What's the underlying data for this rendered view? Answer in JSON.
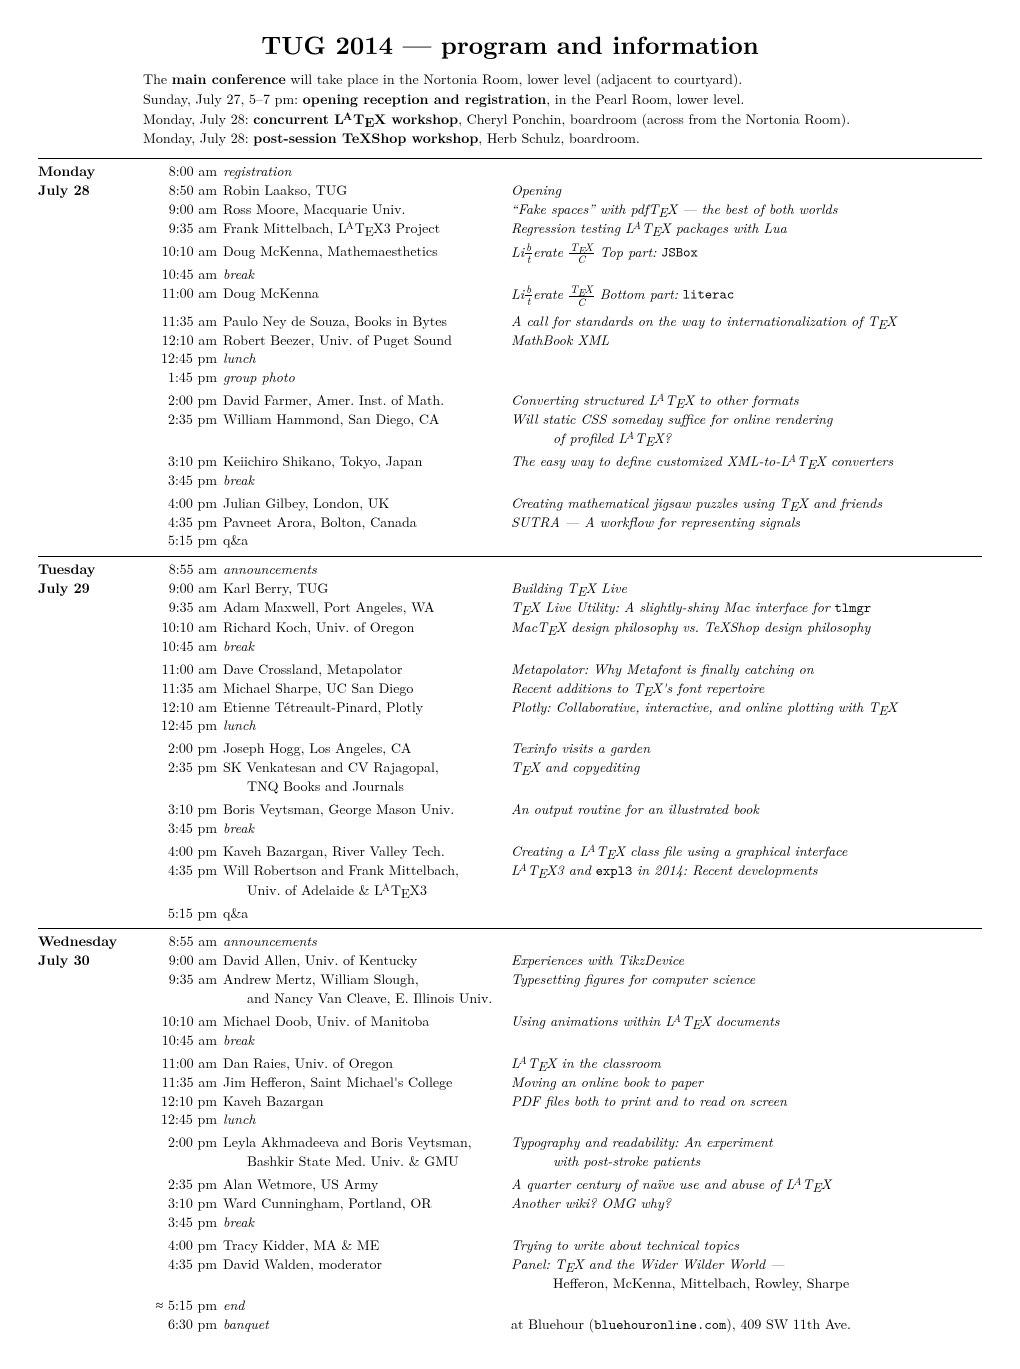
{
  "title": "TUG 2014 — program and information",
  "intro": [
    "The <b>main conference</b> will take place in the Nortonia Room, lower level (adjacent to courtyard).",
    "Sunday, July 27, 5–7 pm: <b>opening reception and registration</b>, in the Pearl Room, lower level.",
    "Monday, July 28: <b>concurrent L<span class='LaTeX'><span class='A'>A</span></span>T<span class='TeX'><span class='E'>E</span></span>X workshop</b>, Cheryl Ponchin, boardroom (across from the Nortonia Room).",
    "Monday, July 28: <b>post-session TeXShop workshop</b>, Herb Schulz, boardroom."
  ],
  "days": [
    {
      "label": [
        "Monday",
        "July 28"
      ],
      "sections": [
        [
          {
            "time": "8:00 am",
            "speaker": "<i>registration</i>",
            "title": ""
          },
          {
            "time": "8:50 am",
            "speaker": "Robin Laakso, TUG",
            "title": "<i>Opening</i>"
          },
          {
            "time": "9:00 am",
            "speaker": "Ross Moore, Macquarie Univ.",
            "title": "<i>“Fake spaces” with pdfT<span class='TeX'><span class='E'>E</span></span>X — the best of both worlds</i>"
          },
          {
            "time": "9:35 am",
            "speaker": "Frank Mittelbach, L<span class='LaTeX'><span class='A'>A</span></span>T<span class='TeX'><span class='E'>E</span></span>X3 Project",
            "title": "<i>Regression testing L<span class='LaTeX'><span class='A'>A</span></span>T<span class='TeX'><span class='E'>E</span></span>X packages with Lua</i>"
          }
        ],
        [
          {
            "time": "10:10 am",
            "speaker": "Doug McKenna, Mathemaesthetics",
            "title": "<i>Li<span class='frac-wrap'><span class='num'>b</span><span class='den'>t</span></span>erate <span class='frac-wrap'><span class='num'>T<span class=\"TeX\"><span class=\"E\">E</span></span>X</span><span class='den'>C</span></span> Top part:</i> <span class='tt'>JSBox</span>"
          },
          {
            "time": "10:45 am",
            "speaker": "<i>break</i>",
            "title": ""
          },
          {
            "time": "11:00 am",
            "speaker": "Doug McKenna",
            "title": "<i>Li<span class='frac-wrap'><span class='num'>b</span><span class='den'>t</span></span>erate <span class='frac-wrap'><span class='num'>T<span class=\"TeX\"><span class=\"E\">E</span></span>X</span><span class='den'>C</span></span> Bottom part:</i> <span class='tt'>literac</span>"
          }
        ],
        [
          {
            "time": "11:35 am",
            "speaker": "Paulo Ney de Souza, Books in Bytes",
            "title": "<i>A call for standards on the way to internationalization of T<span class='TeX'><span class='E'>E</span></span>X</i>"
          },
          {
            "time": "12:10 am",
            "speaker": "Robert Beezer, Univ. of Puget Sound",
            "title": "<i>MathBook XML</i>"
          },
          {
            "time": "12:45 pm",
            "speaker": "<i>lunch</i>",
            "title": ""
          },
          {
            "time": "1:45 pm",
            "speaker": "<i>group photo</i>",
            "title": ""
          }
        ],
        [
          {
            "time": "2:00 pm",
            "speaker": "David Farmer, Amer. Inst. of Math.",
            "title": "<i>Converting structured L<span class='LaTeX'><span class='A'>A</span></span>T<span class='TeX'><span class='E'>E</span></span>X to other formats</i>"
          },
          {
            "time": "2:35 pm",
            "speaker": "William Hammond, San Diego, CA",
            "title": "<i>Will static CSS someday suffice for online rendering</i>",
            "title2": "<i>of profiled L<span class='LaTeX'><span class='A'>A</span></span>T<span class='TeX'><span class='E'>E</span></span>X?</i>"
          }
        ],
        [
          {
            "time": "3:10 pm",
            "speaker": "Keiichiro Shikano, Tokyo, Japan",
            "title": "<i>The easy way to define customized XML-to-L<span class='LaTeX'><span class='A'>A</span></span>T<span class='TeX'><span class='E'>E</span></span>X converters</i>"
          },
          {
            "time": "3:45 pm",
            "speaker": "<i>break</i>",
            "title": ""
          }
        ],
        [
          {
            "time": "4:00 pm",
            "speaker": "Julian Gilbey, London, UK",
            "title": "<i>Creating mathematical jigsaw puzzles using T<span class='TeX'><span class='E'>E</span></span>X and friends</i>"
          },
          {
            "time": "4:35 pm",
            "speaker": "Pavneet Arora, Bolton, Canada",
            "title": "<i>SUTRA — A workflow for representing signals</i>"
          },
          {
            "time": "5:15 pm",
            "speaker": "q&amp;a",
            "title": ""
          }
        ]
      ]
    },
    {
      "label": [
        "Tuesday",
        "July 29"
      ],
      "sections": [
        [
          {
            "time": "8:55 am",
            "speaker": "<i>announcements</i>",
            "title": ""
          },
          {
            "time": "9:00 am",
            "speaker": "Karl Berry, TUG",
            "title": "<i>Building T<span class='TeX'><span class='E'>E</span></span>X Live</i>"
          },
          {
            "time": "9:35 am",
            "speaker": "Adam Maxwell, Port Angeles, WA",
            "title": "<i>T<span class='TeX'><span class='E'>E</span></span>X Live Utility: A slightly-shiny Mac interface for</i> <span class='tt'>tlmgr</span>"
          },
          {
            "time": "10:10 am",
            "speaker": "Richard Koch, Univ. of Oregon",
            "title": "<i>MacT<span class='TeX'><span class='E'>E</span></span>X design philosophy vs. TeXShop design philosophy</i>"
          },
          {
            "time": "10:45 am",
            "speaker": "<i>break</i>",
            "title": ""
          }
        ],
        [
          {
            "time": "11:00 am",
            "speaker": "Dave Crossland, Metapolator",
            "title": "<i>Metapolator: Why Metafont is finally catching on</i>"
          },
          {
            "time": "11:35 am",
            "speaker": "Michael Sharpe, UC San Diego",
            "title": "<i>Recent additions to T<span class='TeX'><span class='E'>E</span></span>X's font repertoire</i>"
          },
          {
            "time": "12:10 am",
            "speaker": "Etienne Tétreault-Pinard, Plotly",
            "title": "<i>Plotly: Collaborative, interactive, and online plotting with T<span class='TeX'><span class='E'>E</span></span>X</i>"
          },
          {
            "time": "12:45 pm",
            "speaker": "<i>lunch</i>",
            "title": ""
          }
        ],
        [
          {
            "time": "2:00 pm",
            "speaker": "Joseph Hogg, Los Angeles, CA",
            "title": "<i>Texinfo visits a garden</i>"
          },
          {
            "time": "2:35 pm",
            "speaker": "SK Venkatesan and CV Rajagopal,",
            "speaker2": "TNQ Books and Journals",
            "title": "<i>T<span class='TeX'><span class='E'>E</span></span>X and copyediting</i>"
          }
        ],
        [
          {
            "time": "3:10 pm",
            "speaker": "Boris Veytsman, George Mason Univ.",
            "title": "<i>An output routine for an illustrated book</i>"
          },
          {
            "time": "3:45 pm",
            "speaker": "<i>break</i>",
            "title": ""
          }
        ],
        [
          {
            "time": "4:00 pm",
            "speaker": "Kaveh Bazargan, River Valley Tech.",
            "title": "<i>Creating a L<span class='LaTeX'><span class='A'>A</span></span>T<span class='TeX'><span class='E'>E</span></span>X class file using a graphical interface</i>"
          },
          {
            "time": "4:35 pm",
            "speaker": "Will Robertson and Frank Mittelbach,",
            "speaker2": "Univ. of Adelaide &amp; L<span class='LaTeX'><span class='A'>A</span></span>T<span class='TeX'><span class='E'>E</span></span>X3",
            "title": "<i>L<span class='LaTeX'><span class='A'>A</span></span>T<span class='TeX'><span class='E'>E</span></span>X3 and</i> <span class='tt'>expl3</span> <i>in 2014: Recent developments</i>"
          }
        ],
        [
          {
            "time": "5:15 pm",
            "speaker": "q&amp;a",
            "title": ""
          }
        ]
      ]
    },
    {
      "label": [
        "Wednesday",
        "July 30"
      ],
      "sections": [
        [
          {
            "time": "8:55 am",
            "speaker": "<i>announcements</i>",
            "title": ""
          },
          {
            "time": "9:00 am",
            "speaker": "David Allen, Univ. of Kentucky",
            "title": "<i>Experiences with TikzDevice</i>"
          },
          {
            "time": "9:35 am",
            "speaker": "Andrew Mertz, William Slough,",
            "speaker2": "and Nancy Van Cleave, E. Illinois Univ.",
            "title": "<i>Typesetting figures for computer science</i>"
          }
        ],
        [
          {
            "time": "10:10 am",
            "speaker": "Michael Doob, Univ. of Manitoba",
            "title": "<i>Using animations within L<span class='LaTeX'><span class='A'>A</span></span>T<span class='TeX'><span class='E'>E</span></span>X documents</i>"
          },
          {
            "time": "10:45 am",
            "speaker": "<i>break</i>",
            "title": ""
          }
        ],
        [
          {
            "time": "11:00 am",
            "speaker": "Dan Raies, Univ. of Oregon",
            "title": "<i>L<span class='LaTeX'><span class='A'>A</span></span>T<span class='TeX'><span class='E'>E</span></span>X in the classroom</i>"
          },
          {
            "time": "11:35 am",
            "speaker": "Jim Hefferon, Saint Michael's College",
            "title": "<i>Moving an online book to paper</i>"
          },
          {
            "time": "12:10 pm",
            "speaker": "Kaveh Bazargan",
            "title": "<i>PDF files both to print and to read on screen</i>"
          },
          {
            "time": "12:45 pm",
            "speaker": "<i>lunch</i>",
            "title": ""
          }
        ],
        [
          {
            "time": "2:00 pm",
            "speaker": "Leyla Akhmadeeva and Boris Veytsman,",
            "speaker2": "Bashkir State Med. Univ. &amp; GMU",
            "title": "<i>Typography and readability: An experiment</i>",
            "title2": "<i>with post-stroke patients</i>"
          }
        ],
        [
          {
            "time": "2:35 pm",
            "speaker": "Alan Wetmore, US Army",
            "title": "<i>A quarter century of naïve use and abuse of L<span class='LaTeX'><span class='A'>A</span></span>T<span class='TeX'><span class='E'>E</span></span>X</i>"
          },
          {
            "time": "3:10 pm",
            "speaker": "Ward Cunningham, Portland, OR",
            "title": "<i>Another wiki? OMG why?</i>"
          },
          {
            "time": "3:45 pm",
            "speaker": "<i>break</i>",
            "title": ""
          }
        ],
        [
          {
            "time": "4:00 pm",
            "speaker": "Tracy Kidder, MA &amp; ME",
            "title": "<i>Trying to write about technical topics</i>"
          },
          {
            "time": "4:35 pm",
            "speaker": "David Walden, moderator",
            "title": "<i>Panel: T<span class='TeX'><span class='E'>E</span></span>X and the Wider Wilder World —</i>",
            "title2": "Hefferon, McKenna, Mittelbach, Rowley, Sharpe"
          }
        ],
        [
          {
            "time": "≈ 5:15 pm",
            "speaker": "<i>end</i>",
            "title": ""
          },
          {
            "time": "6:30 pm",
            "speaker": "<i>banquet</i>",
            "title": "at Bluehour (<span class='tt'>bluehouronline.com</span>), 409 SW 11th Ave."
          }
        ]
      ]
    }
  ]
}
